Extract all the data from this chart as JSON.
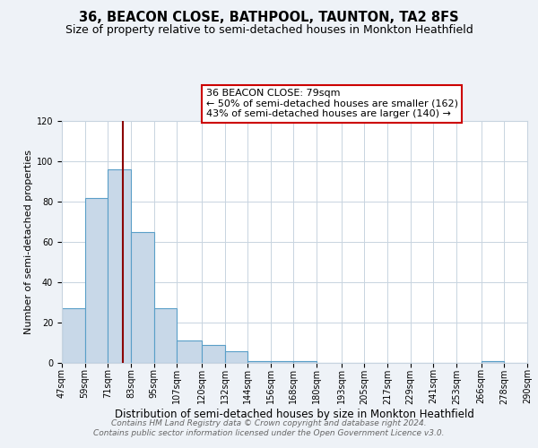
{
  "title": "36, BEACON CLOSE, BATHPOOL, TAUNTON, TA2 8FS",
  "subtitle": "Size of property relative to semi-detached houses in Monkton Heathfield",
  "xlabel": "Distribution of semi-detached houses by size in Monkton Heathfield",
  "ylabel": "Number of semi-detached properties",
  "bin_edges": [
    47,
    59,
    71,
    83,
    95,
    107,
    120,
    132,
    144,
    156,
    168,
    180,
    193,
    205,
    217,
    229,
    241,
    253,
    266,
    278,
    290
  ],
  "bin_heights": [
    27,
    82,
    96,
    65,
    27,
    11,
    9,
    6,
    1,
    1,
    1,
    0,
    0,
    0,
    0,
    0,
    0,
    0,
    1,
    0
  ],
  "bar_facecolor": "#c8d8e8",
  "bar_edgecolor": "#5a9fc8",
  "property_line_x": 79,
  "property_line_color": "#8b0000",
  "annotation_title": "36 BEACON CLOSE: 79sqm",
  "annotation_line1": "← 50% of semi-detached houses are smaller (162)",
  "annotation_line2": "43% of semi-detached houses are larger (140) →",
  "annotation_box_edgecolor": "#cc0000",
  "ylim": [
    0,
    120
  ],
  "yticks": [
    0,
    20,
    40,
    60,
    80,
    100,
    120
  ],
  "xtick_labels": [
    "47sqm",
    "59sqm",
    "71sqm",
    "83sqm",
    "95sqm",
    "107sqm",
    "120sqm",
    "132sqm",
    "144sqm",
    "156sqm",
    "168sqm",
    "180sqm",
    "193sqm",
    "205sqm",
    "217sqm",
    "229sqm",
    "241sqm",
    "253sqm",
    "266sqm",
    "278sqm",
    "290sqm"
  ],
  "footer_line1": "Contains HM Land Registry data © Crown copyright and database right 2024.",
  "footer_line2": "Contains public sector information licensed under the Open Government Licence v3.0.",
  "bg_color": "#eef2f7",
  "plot_bg_color": "#ffffff",
  "title_fontsize": 10.5,
  "subtitle_fontsize": 9,
  "xlabel_fontsize": 8.5,
  "ylabel_fontsize": 8,
  "tick_fontsize": 7,
  "footer_fontsize": 6.5,
  "annotation_fontsize": 8
}
